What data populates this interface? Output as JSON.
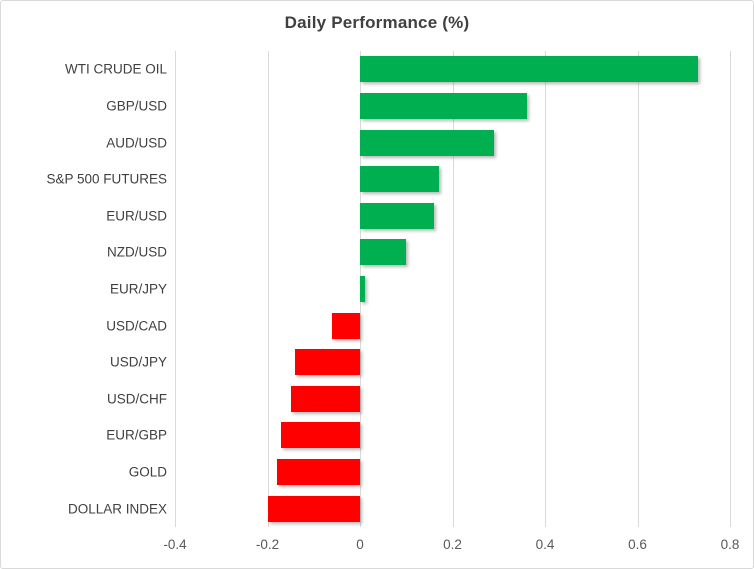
{
  "chart_data": {
    "type": "bar",
    "orientation": "horizontal",
    "title": "Daily Performance (%)",
    "categories": [
      "WTI CRUDE OIL",
      "GBP/USD",
      "AUD/USD",
      "S&P 500 FUTURES",
      "EUR/USD",
      "NZD/USD",
      "EUR/JPY",
      "USD/CAD",
      "USD/JPY",
      "USD/CHF",
      "EUR/GBP",
      "GOLD",
      "DOLLAR INDEX"
    ],
    "values": [
      0.73,
      0.36,
      0.29,
      0.17,
      0.16,
      0.1,
      0.01,
      -0.06,
      -0.14,
      -0.15,
      -0.17,
      -0.18,
      -0.2
    ],
    "xlabel": "",
    "ylabel": "",
    "xlim": [
      -0.4,
      0.8
    ],
    "xticks": [
      -0.4,
      -0.2,
      0,
      0.2,
      0.4,
      0.6,
      0.8
    ],
    "xtick_labels": [
      "-0.4",
      "-0.2",
      "0",
      "0.2",
      "0.4",
      "0.6",
      "0.8"
    ],
    "grid": true,
    "legend": false,
    "colors": {
      "positive_bar": "#00B050",
      "negative_bar": "#FF0000",
      "gridline": "#D9D9D9",
      "title_text": "#404040",
      "category_text": "#404040",
      "tick_text": "#595959",
      "canvas_border": "#D9D9D9",
      "background": "#FFFFFF"
    }
  }
}
